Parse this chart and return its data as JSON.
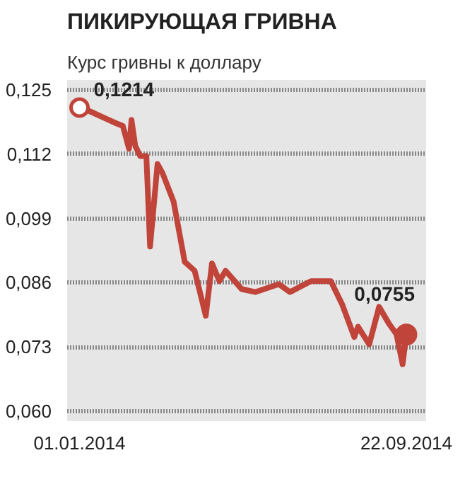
{
  "chart_data": {
    "type": "line",
    "title": "ПИКИРУЮЩАЯ ГРИВНА",
    "subtitle": "Курс гривны к доллару",
    "x": [
      "2014-01-01",
      "2014-01-09",
      "2014-01-22",
      "2014-01-30",
      "2014-02-05",
      "2014-02-10",
      "2014-02-12",
      "2014-02-15",
      "2014-02-19",
      "2014-02-24",
      "2014-02-27",
      "2014-03-05",
      "2014-03-09",
      "2014-03-18",
      "2014-03-27",
      "2014-04-04",
      "2014-04-13",
      "2014-04-18",
      "2014-04-24",
      "2014-04-29",
      "2014-05-12",
      "2014-05-23",
      "2014-06-11",
      "2014-06-20",
      "2014-07-07",
      "2014-07-23",
      "2014-08-01",
      "2014-08-11",
      "2014-08-14",
      "2014-08-23",
      "2014-08-31",
      "2014-09-08",
      "2014-09-14",
      "2014-09-19",
      "2014-09-22"
    ],
    "series": [
      {
        "color": "#c0443a",
        "values": [
          0.1214,
          0.1207,
          0.1192,
          0.1183,
          0.1177,
          0.1131,
          0.1189,
          0.1137,
          0.1116,
          0.1116,
          0.0933,
          0.11,
          0.1082,
          0.1024,
          0.0902,
          0.0884,
          0.0793,
          0.0899,
          0.0863,
          0.0884,
          0.0847,
          0.0841,
          0.0857,
          0.0841,
          0.0863,
          0.0863,
          0.0817,
          0.075,
          0.0771,
          0.0735,
          0.0811,
          0.0777,
          0.0756,
          0.0695,
          0.0755
        ]
      }
    ],
    "xlim": [
      "2013-12-22",
      "2014-10-08"
    ],
    "xticks": [
      {
        "value": "2014-01-01",
        "label": "01.01.2014"
      },
      {
        "value": "2014-09-22",
        "label": "22.09.2014"
      }
    ],
    "ylim": [
      0.058,
      0.127
    ],
    "yticks": [
      {
        "value": 0.06,
        "label": "0,060"
      },
      {
        "value": 0.073,
        "label": "0,073"
      },
      {
        "value": 0.086,
        "label": "0,086"
      },
      {
        "value": 0.099,
        "label": "0,099"
      },
      {
        "value": 0.112,
        "label": "0,112"
      },
      {
        "value": 0.125,
        "label": "0,125"
      }
    ],
    "grid": "y",
    "annotations": [
      {
        "text": "0,1214",
        "x": "2014-01-01",
        "y": 0.1214
      },
      {
        "text": "0,0755",
        "x": "2014-09-22",
        "y": 0.0755
      }
    ]
  }
}
